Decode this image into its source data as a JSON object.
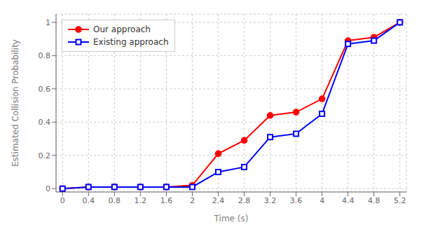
{
  "chart_data": {
    "type": "line",
    "xlabel": "Time (s)",
    "ylabel": "Estimated Collision Probability",
    "x": [
      0,
      0.4,
      0.8,
      1.2,
      1.6,
      2.0,
      2.4,
      2.8,
      3.2,
      3.6,
      4.0,
      4.4,
      4.8,
      5.2
    ],
    "series": [
      {
        "name": "Our approach",
        "color": "#ff0000",
        "marker": "circle",
        "values": [
          0.0,
          0.01,
          0.01,
          0.01,
          0.01,
          0.02,
          0.21,
          0.29,
          0.44,
          0.46,
          0.54,
          0.89,
          0.91,
          1.0
        ]
      },
      {
        "name": "Existing approach",
        "color": "#0000ff",
        "marker": "square",
        "values": [
          0.0,
          0.01,
          0.01,
          0.01,
          0.01,
          0.01,
          0.1,
          0.13,
          0.31,
          0.33,
          0.45,
          0.87,
          0.89,
          1.0
        ]
      }
    ],
    "xlim": [
      -0.1,
      5.3
    ],
    "ylim": [
      -0.02,
      1.05
    ],
    "xticks": [
      0,
      0.4,
      0.8,
      1.2,
      1.6,
      2.0,
      2.4,
      2.8,
      3.2,
      3.6,
      4.0,
      4.4,
      4.8,
      5.2
    ],
    "yticks": [
      0,
      0.2,
      0.4,
      0.6,
      0.8,
      1.0
    ],
    "grid": true,
    "legend": "upper left"
  }
}
